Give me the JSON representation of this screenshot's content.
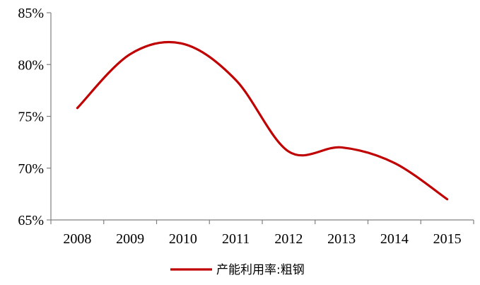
{
  "chart_data": {
    "type": "line",
    "title": "",
    "xlabel": "",
    "ylabel": "",
    "categories": [
      "2008",
      "2009",
      "2010",
      "2011",
      "2012",
      "2013",
      "2014",
      "2015"
    ],
    "series": [
      {
        "name": "产能利用率:粗钢",
        "color": "#c00000",
        "values": [
          75.8,
          81.0,
          82.0,
          78.5,
          71.6,
          72.0,
          70.5,
          67.0
        ]
      }
    ],
    "ylim": [
      65,
      85
    ],
    "yticks": [
      65,
      70,
      75,
      80,
      85
    ],
    "ytick_labels": [
      "65%",
      "70%",
      "75%",
      "80%",
      "85%"
    ],
    "grid": false,
    "legend_position": "bottom-center"
  }
}
